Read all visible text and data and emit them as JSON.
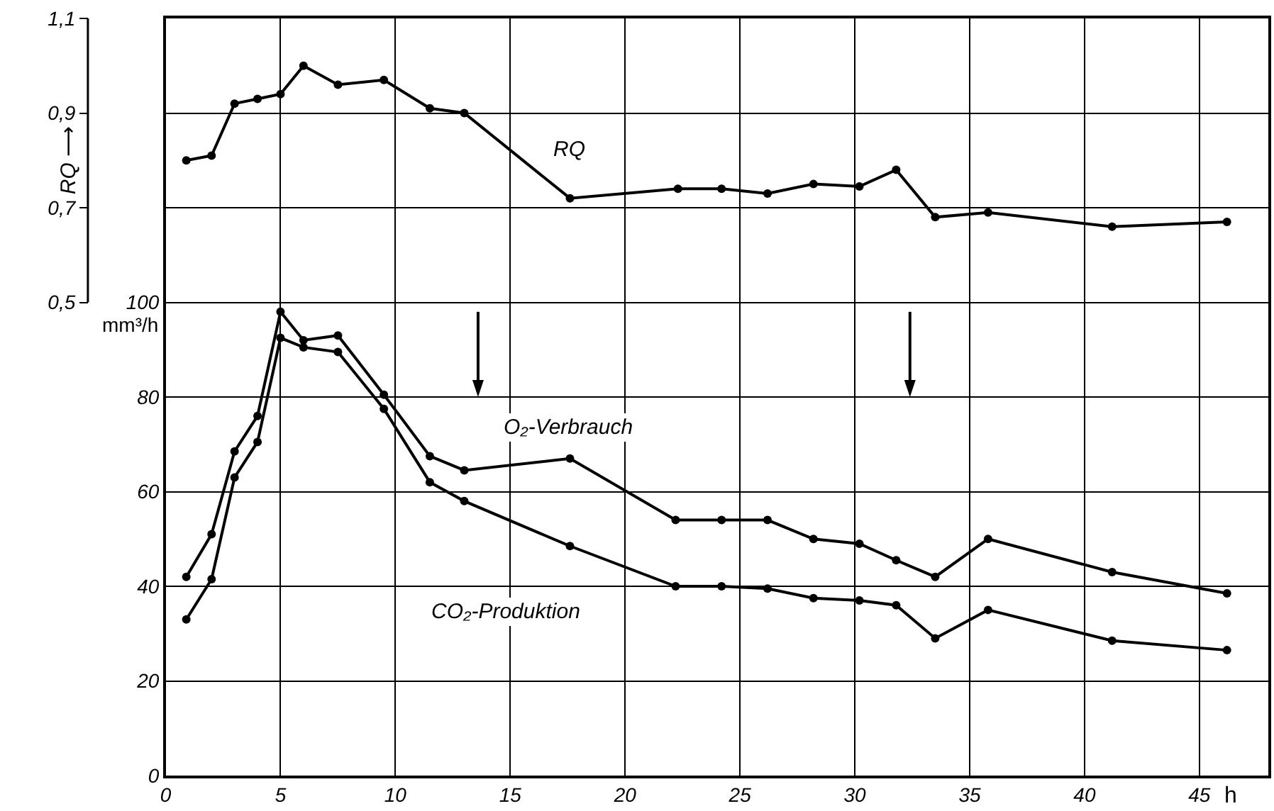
{
  "chart_data": {
    "type": "line",
    "xlabel": "h",
    "ylabel": "mm³/h",
    "y2label": "RQ ⟶",
    "xlim": [
      0,
      48
    ],
    "xticks": [
      0,
      5,
      10,
      15,
      20,
      25,
      30,
      35,
      40,
      45
    ],
    "ylim": [
      0,
      160
    ],
    "yticks": [
      0,
      20,
      40,
      60,
      80,
      100
    ],
    "y2lim": [
      -0.5,
      1.1
    ],
    "y2ticks": [
      {
        "value": 0.5,
        "label": "0,5"
      },
      {
        "value": 0.7,
        "label": "0,7"
      },
      {
        "value": 0.9,
        "label": "0,9"
      },
      {
        "value": 1.1,
        "label": "1,1"
      }
    ],
    "grid": true,
    "legend": false,
    "marker": "circle",
    "line_style": "solid",
    "ref_lines": [
      {
        "axis": "x",
        "value": 13.6
      },
      {
        "axis": "x",
        "value": 32.4
      }
    ],
    "series": [
      {
        "name": "RQ",
        "color": "#000000",
        "axis": "y2",
        "x": [
          0.9,
          2,
          3,
          4,
          5,
          6,
          7.5,
          9.5,
          11.5,
          13,
          17.6,
          22.3,
          24.2,
          26.2,
          28.2,
          30.2,
          31.8,
          33.5,
          35.8,
          41.2,
          46.2
        ],
        "values": [
          0.8,
          0.81,
          0.92,
          0.93,
          0.94,
          1.0,
          0.96,
          0.97,
          0.91,
          0.9,
          0.72,
          0.74,
          0.74,
          0.73,
          0.75,
          0.745,
          0.78,
          0.68,
          0.69,
          0.66,
          0.67
        ]
      },
      {
        "name": "O₂-Verbrauch",
        "color": "#000000",
        "x": [
          0.9,
          2,
          3,
          4,
          5,
          6,
          7.5,
          9.5,
          11.5,
          13,
          17.6,
          22.2,
          24.2,
          26.2,
          28.2,
          30.2,
          31.8,
          33.5,
          35.8,
          41.2,
          46.2
        ],
        "values": [
          42,
          51,
          68.5,
          76,
          98,
          92,
          93,
          80.5,
          67.5,
          64.5,
          67,
          54,
          54,
          54,
          50,
          49,
          45.5,
          42,
          50,
          43,
          38.5
        ]
      },
      {
        "name": "CO₂-Produktion",
        "color": "#000000",
        "x": [
          0.9,
          2,
          3,
          4,
          5,
          6,
          7.5,
          9.5,
          11.5,
          13,
          17.6,
          22.2,
          24.2,
          26.2,
          28.2,
          30.2,
          31.8,
          33.5,
          35.8,
          41.2,
          46.2
        ],
        "values": [
          33,
          41.5,
          63,
          70.5,
          92.5,
          90.5,
          89.5,
          77.5,
          62,
          58,
          48.5,
          40,
          40,
          39.5,
          37.5,
          37,
          36,
          29,
          35,
          28.5,
          26.5
        ]
      }
    ]
  }
}
